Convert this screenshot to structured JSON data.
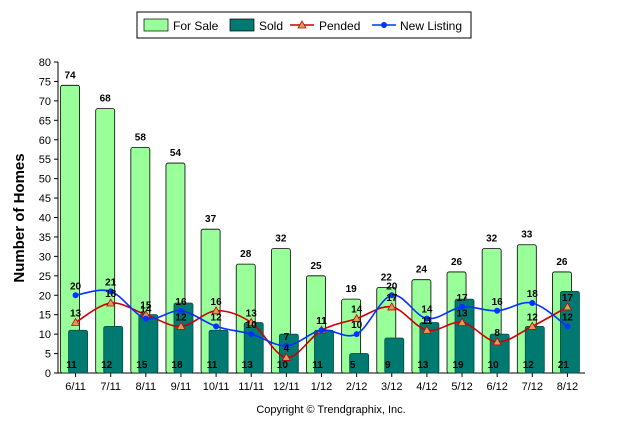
{
  "chart_data": {
    "type": "bar",
    "categories": [
      "6/11",
      "7/11",
      "8/11",
      "9/11",
      "10/11",
      "11/11",
      "12/11",
      "1/12",
      "2/12",
      "3/12",
      "4/12",
      "5/12",
      "6/12",
      "7/12",
      "8/12"
    ],
    "ylabel": "Number of Homes",
    "xlabel": "",
    "ylim": [
      0,
      80
    ],
    "yticks": [
      0,
      5,
      10,
      15,
      20,
      25,
      30,
      35,
      40,
      45,
      50,
      55,
      60,
      65,
      70,
      75,
      80
    ],
    "grid": false,
    "legend_position": "top-center",
    "series": [
      {
        "name": "For Sale",
        "kind": "bar",
        "color": "#99ff99",
        "values": [
          74,
          68,
          58,
          54,
          37,
          28,
          32,
          25,
          19,
          22,
          24,
          26,
          32,
          33,
          26
        ]
      },
      {
        "name": "Sold",
        "kind": "bar",
        "color": "#007a70",
        "values": [
          11,
          12,
          15,
          18,
          11,
          13,
          10,
          11,
          5,
          9,
          13,
          19,
          10,
          12,
          21
        ]
      },
      {
        "name": "Pended",
        "kind": "line",
        "color": "#cc0000",
        "marker": "triangle",
        "values": [
          13,
          18,
          15,
          12,
          16,
          13,
          4,
          11,
          14,
          17,
          11,
          13,
          8,
          12,
          17
        ]
      },
      {
        "name": "New Listing",
        "kind": "line",
        "color": "#0033ff",
        "marker": "circle",
        "values": [
          20,
          21,
          14,
          16,
          12,
          10,
          7,
          11,
          10,
          20,
          14,
          17,
          16,
          18,
          12
        ]
      }
    ],
    "footer": "Copyright © Trendgraphix, Inc."
  }
}
